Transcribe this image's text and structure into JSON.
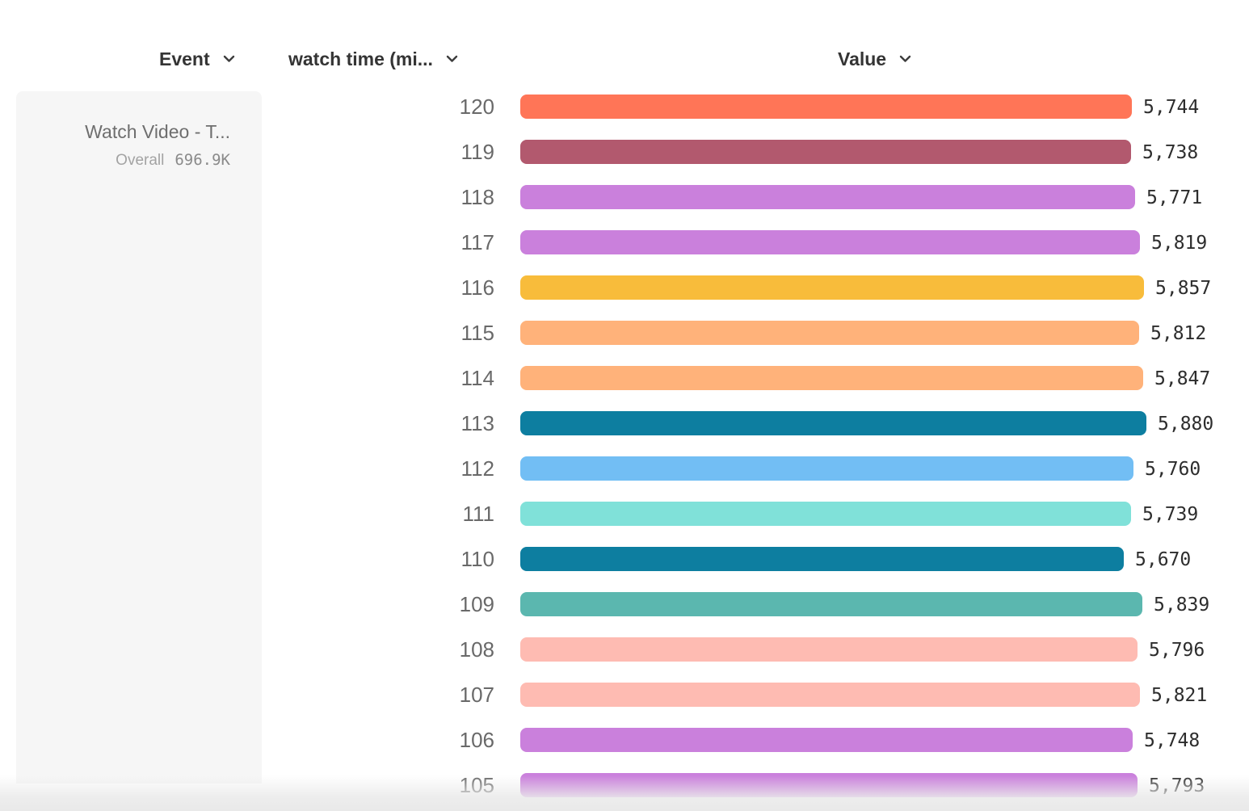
{
  "columns": {
    "event": {
      "label": "Event"
    },
    "breakdown": {
      "label": "watch time (mi..."
    },
    "value": {
      "label": "Value"
    }
  },
  "legend": {
    "event_name": "Watch Video - T...",
    "overall_label": "Overall",
    "overall_value": "696.9K"
  },
  "chart_data": {
    "type": "bar",
    "orientation": "horizontal",
    "title": "",
    "xlabel": "Value",
    "ylabel": "watch time (mi...",
    "xlim": [
      0,
      5880
    ],
    "grid": false,
    "legend_position": "left",
    "series_name": "Watch Video - T... (Overall 696.9K)",
    "categories": [
      "120",
      "119",
      "118",
      "117",
      "116",
      "115",
      "114",
      "113",
      "112",
      "111",
      "110",
      "109",
      "108",
      "107",
      "106",
      "105"
    ],
    "values": [
      5744,
      5738,
      5771,
      5819,
      5857,
      5812,
      5847,
      5880,
      5760,
      5739,
      5670,
      5839,
      5796,
      5821,
      5748,
      5793
    ],
    "value_labels": [
      "5,744",
      "5,738",
      "5,771",
      "5,819",
      "5,857",
      "5,812",
      "5,847",
      "5,880",
      "5,760",
      "5,739",
      "5,670",
      "5,839",
      "5,796",
      "5,821",
      "5,748",
      "5,793"
    ],
    "colors": [
      "#FF7557",
      "#B2596E",
      "#CA80DC",
      "#CA80DC",
      "#F8BC3B",
      "#FFB27A",
      "#FFB27A",
      "#0D7EA0",
      "#72BEF4",
      "#80E1D9",
      "#0D7EA0",
      "#5BB7AF",
      "#FEBBB2",
      "#FEBBB2",
      "#CA80DC",
      "#CA80DC"
    ]
  },
  "colors": {
    "header_text": "#343434",
    "row_label_text": "#696969",
    "value_text": "#2d2d2d",
    "legend_card_bg": "#f6f6f6",
    "bottom_fade": "#e9e9e9"
  },
  "icons": {
    "chevron_down": "v"
  }
}
